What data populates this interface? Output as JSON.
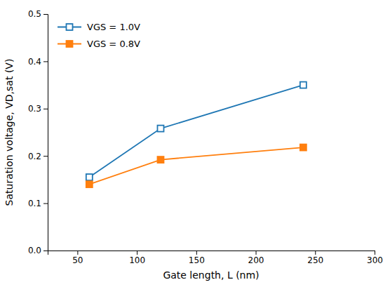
{
  "chart_data": {
    "type": "line",
    "x_label": "Gate length, L (nm)",
    "y_label": "Saturation voltage, VD,sat (V)",
    "x": [
      60,
      120,
      240
    ],
    "series": [
      {
        "name": "VGS = 1.0V",
        "marker": "square-open",
        "values": [
          0.155,
          0.258,
          0.35
        ]
      },
      {
        "name": "VGS = 0.8V",
        "marker": "square",
        "values": [
          0.14,
          0.192,
          0.218
        ]
      }
    ],
    "xlim": [
      25,
      300
    ],
    "ylim": [
      0.0,
      0.5
    ],
    "xticks": [
      50,
      100,
      150,
      200,
      250,
      300
    ],
    "yticks": [
      {
        "value": 0.0,
        "label": "0.0"
      },
      0.1,
      0.2,
      0.3,
      0.4,
      0.5
    ],
    "grid": false,
    "legend": "upper left"
  }
}
